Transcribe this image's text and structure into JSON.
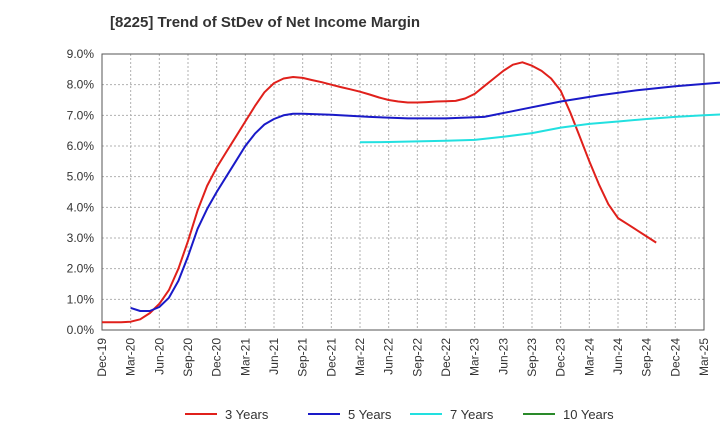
{
  "chart_data": {
    "type": "line",
    "title": "[8225]  Trend of StDev of Net Income Margin",
    "xlabel": "",
    "ylabel": "",
    "x_tick_labels": [
      "Dec-19",
      "Mar-20",
      "Jun-20",
      "Sep-20",
      "Dec-20",
      "Mar-21",
      "Jun-21",
      "Sep-21",
      "Dec-21",
      "Mar-22",
      "Jun-22",
      "Sep-22",
      "Dec-22",
      "Mar-23",
      "Jun-23",
      "Sep-23",
      "Dec-23",
      "Mar-24",
      "Jun-24",
      "Sep-24",
      "Dec-24",
      "Mar-25"
    ],
    "y_tick_labels": [
      "0.0%",
      "1.0%",
      "2.0%",
      "3.0%",
      "4.0%",
      "5.0%",
      "6.0%",
      "7.0%",
      "8.0%",
      "9.0%"
    ],
    "ylim": [
      0,
      9
    ],
    "grid": true,
    "legend_position": "bottom",
    "x_months_unit": "months from Dec-19",
    "series": [
      {
        "name": "3 Years",
        "color": "#e0201b",
        "points": [
          [
            0,
            0.25
          ],
          [
            2,
            0.25
          ],
          [
            3,
            0.27
          ],
          [
            4,
            0.35
          ],
          [
            5,
            0.55
          ],
          [
            6,
            0.85
          ],
          [
            7,
            1.3
          ],
          [
            8,
            2.0
          ],
          [
            9,
            2.9
          ],
          [
            10,
            3.9
          ],
          [
            11,
            4.7
          ],
          [
            12,
            5.3
          ],
          [
            13,
            5.8
          ],
          [
            14,
            6.3
          ],
          [
            15,
            6.8
          ],
          [
            16,
            7.3
          ],
          [
            17,
            7.75
          ],
          [
            18,
            8.05
          ],
          [
            19,
            8.2
          ],
          [
            20,
            8.25
          ],
          [
            21,
            8.22
          ],
          [
            22,
            8.15
          ],
          [
            23,
            8.08
          ],
          [
            24,
            8.0
          ],
          [
            25,
            7.92
          ],
          [
            26,
            7.85
          ],
          [
            27,
            7.77
          ],
          [
            28,
            7.68
          ],
          [
            29,
            7.58
          ],
          [
            30,
            7.5
          ],
          [
            31,
            7.45
          ],
          [
            32,
            7.42
          ],
          [
            33,
            7.42
          ],
          [
            34,
            7.43
          ],
          [
            35,
            7.45
          ],
          [
            36,
            7.46
          ],
          [
            37,
            7.47
          ],
          [
            38,
            7.55
          ],
          [
            39,
            7.7
          ],
          [
            40,
            7.95
          ],
          [
            41,
            8.2
          ],
          [
            42,
            8.45
          ],
          [
            43,
            8.65
          ],
          [
            44,
            8.73
          ],
          [
            45,
            8.62
          ],
          [
            46,
            8.45
          ],
          [
            47,
            8.2
          ],
          [
            48,
            7.8
          ],
          [
            49,
            7.1
          ],
          [
            50,
            6.3
          ],
          [
            51,
            5.5
          ],
          [
            52,
            4.75
          ],
          [
            53,
            4.1
          ],
          [
            54,
            3.65
          ],
          [
            55,
            3.45
          ],
          [
            56,
            3.25
          ],
          [
            57,
            3.05
          ],
          [
            58,
            2.85
          ]
        ]
      },
      {
        "name": "5 Years",
        "color": "#1a1ac8",
        "points": [
          [
            3,
            0.72
          ],
          [
            4,
            0.62
          ],
          [
            5,
            0.62
          ],
          [
            6,
            0.75
          ],
          [
            7,
            1.05
          ],
          [
            8,
            1.6
          ],
          [
            9,
            2.4
          ],
          [
            10,
            3.3
          ],
          [
            11,
            3.95
          ],
          [
            12,
            4.5
          ],
          [
            13,
            5.0
          ],
          [
            14,
            5.5
          ],
          [
            15,
            6.0
          ],
          [
            16,
            6.4
          ],
          [
            17,
            6.7
          ],
          [
            18,
            6.88
          ],
          [
            19,
            7.0
          ],
          [
            20,
            7.05
          ],
          [
            21,
            7.05
          ],
          [
            24,
            7.02
          ],
          [
            28,
            6.95
          ],
          [
            32,
            6.9
          ],
          [
            36,
            6.9
          ],
          [
            40,
            6.95
          ],
          [
            44,
            7.2
          ],
          [
            48,
            7.45
          ],
          [
            52,
            7.65
          ],
          [
            56,
            7.82
          ],
          [
            60,
            7.95
          ],
          [
            64,
            8.05
          ],
          [
            68,
            8.15
          ]
        ]
      },
      {
        "name": "7 Years",
        "color": "#22e0e0",
        "points": [
          [
            27,
            6.12
          ],
          [
            30,
            6.13
          ],
          [
            33,
            6.15
          ],
          [
            36,
            6.17
          ],
          [
            39,
            6.2
          ],
          [
            42,
            6.3
          ],
          [
            45,
            6.42
          ],
          [
            48,
            6.6
          ],
          [
            51,
            6.72
          ],
          [
            54,
            6.8
          ],
          [
            57,
            6.88
          ],
          [
            60,
            6.95
          ],
          [
            63,
            7.0
          ],
          [
            66,
            7.05
          ]
        ]
      },
      {
        "name": "10 Years",
        "color": "#2a8a2a",
        "points": []
      }
    ]
  }
}
